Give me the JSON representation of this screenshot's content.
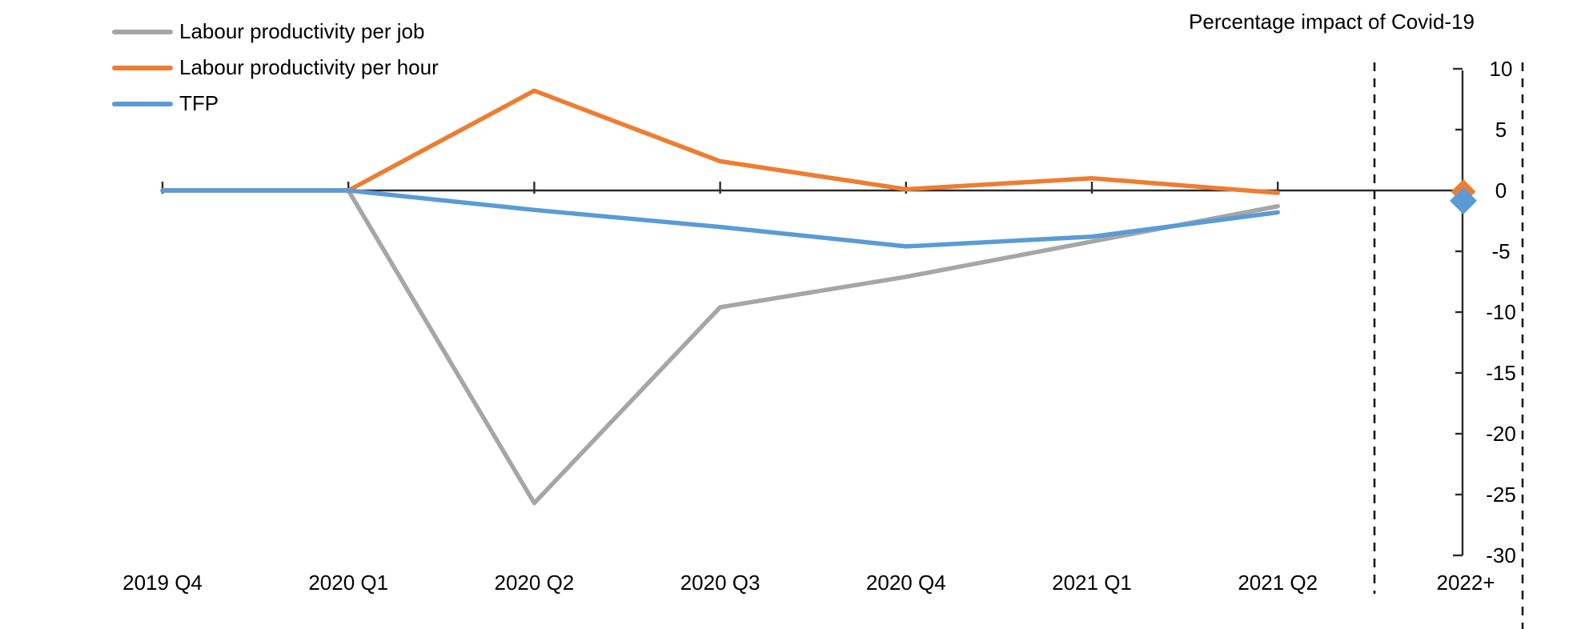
{
  "title": "Percentage impact of Covid-19",
  "legend": {
    "position": "top-left",
    "items": [
      {
        "label": "Labour productivity per job",
        "color": "#A6A6A6"
      },
      {
        "label": "Labour productivity per hour",
        "color": "#ED7D31"
      },
      {
        "label": "TFP",
        "color": "#5B9BD5"
      }
    ]
  },
  "chart_data": {
    "type": "line",
    "title": "Percentage impact of Covid-19",
    "categories": [
      "2019 Q4",
      "2020 Q1",
      "2020 Q2",
      "2020 Q3",
      "2020 Q4",
      "2021 Q1",
      "2021 Q2"
    ],
    "forecast_category": "2022+",
    "series": [
      {
        "name": "Labour productivity per job",
        "color": "#A6A6A6",
        "values": [
          0,
          0,
          -25.7,
          -9.6,
          -7.1,
          -4.2,
          -1.3
        ],
        "forecast": null
      },
      {
        "name": "Labour productivity per hour",
        "color": "#ED7D31",
        "values": [
          0,
          0,
          8.2,
          2.4,
          0.1,
          1.0,
          -0.2
        ],
        "forecast": -0.1
      },
      {
        "name": "TFP",
        "color": "#5B9BD5",
        "values": [
          0,
          0,
          -1.6,
          -3.0,
          -4.6,
          -3.8,
          -1.8
        ],
        "forecast": -0.85
      }
    ],
    "y_ticks": [
      10,
      5,
      0,
      -5,
      -10,
      -15,
      -20,
      -25,
      -30
    ],
    "ylim": [
      -30,
      10
    ],
    "ylabel": "",
    "xlabel": "",
    "grid": false,
    "y_axis_side": "right",
    "legend_position": "top-left",
    "forecast_zone": "delimited by two vertical dashed lines",
    "marker_shape": "diamond",
    "axis_color": "#2b2b2b"
  }
}
